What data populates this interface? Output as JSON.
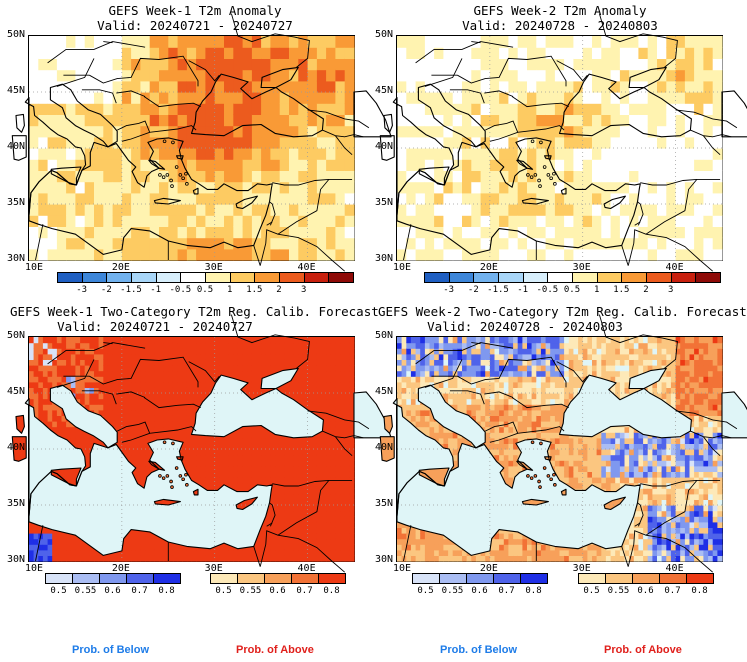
{
  "panels": [
    {
      "line1": "GEFS Week-1 T2m Anomaly",
      "line2": "Valid: 20240721 - 20240727"
    },
    {
      "line1": "GEFS Week-2 T2m Anomaly",
      "line2": "Valid: 20240728 - 20240803"
    },
    {
      "line1": "GEFS Week-1 Two-Category T2m Reg. Calib. Forecast",
      "line2": "Valid: 20240721 - 20240727"
    },
    {
      "line1": "GEFS Week-2 Two-Category T2m Reg. Calib. Forecast",
      "line2": "Valid: 20240728 - 20240803"
    }
  ],
  "lat_labels": [
    "50N",
    "45N",
    "40N",
    "35N",
    "30N"
  ],
  "lon_labels": [
    "10E",
    "20E",
    "30E",
    "40E"
  ],
  "anomaly_colorbar": {
    "ticks": [
      "-3",
      "-2",
      "-1.5",
      "-1",
      "-0.5",
      "0.5",
      "1",
      "1.5",
      "2",
      "3"
    ],
    "colors": [
      "#1f5fc2",
      "#3d86d9",
      "#72b2ee",
      "#a8d6f8",
      "#d8effc",
      "#ffffff",
      "#fff3b0",
      "#fdcb62",
      "#f99a36",
      "#ec5b1e",
      "#c8200e",
      "#8e0a07"
    ]
  },
  "prob_below_colorbar": {
    "ticks": [
      "0.5",
      "0.55",
      "0.6",
      "0.7",
      "0.8"
    ],
    "colors": [
      "#d8e3f8",
      "#aabdf3",
      "#7f98ef",
      "#4f63ea",
      "#1f2fe6"
    ]
  },
  "prob_above_colorbar": {
    "ticks": [
      "0.5",
      "0.55",
      "0.6",
      "0.7",
      "0.8"
    ],
    "colors": [
      "#fde9b8",
      "#fbc680",
      "#f7a05a",
      "#f27236",
      "#ed3a14"
    ]
  },
  "labels": {
    "below": "Prob. of Below",
    "above": "Prob. of Above"
  },
  "colors": {
    "sea": "#dff5f7",
    "land_neutral": "#fff7d6",
    "coast": "#000000",
    "below_text": "#1e7ce8",
    "above_text": "#e0201c"
  }
}
